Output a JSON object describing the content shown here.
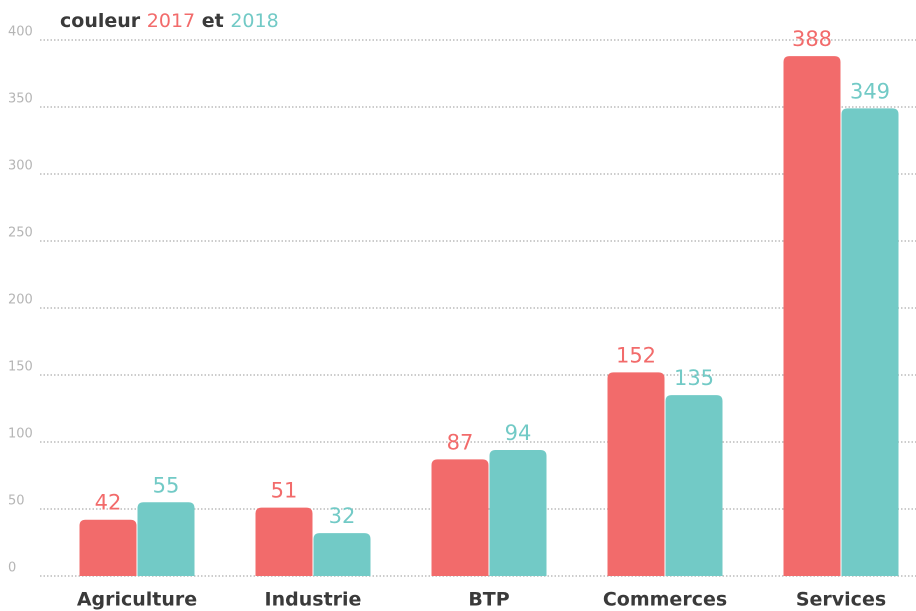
{
  "chart_data": {
    "type": "bar",
    "legend_prefix": "couleur",
    "legend_joiner": "et",
    "categories": [
      "Agriculture",
      "Industrie",
      "BTP",
      "Commerces",
      "Services"
    ],
    "series": [
      {
        "name": "2017",
        "color": "#f26b6b",
        "values": [
          42,
          51,
          87,
          152,
          388
        ]
      },
      {
        "name": "2018",
        "color": "#72cac6",
        "values": [
          55,
          32,
          94,
          135,
          349
        ]
      }
    ],
    "ylim": [
      0,
      400
    ],
    "yticks": [
      0,
      50,
      100,
      150,
      200,
      250,
      300,
      350,
      400
    ],
    "grid": true
  }
}
